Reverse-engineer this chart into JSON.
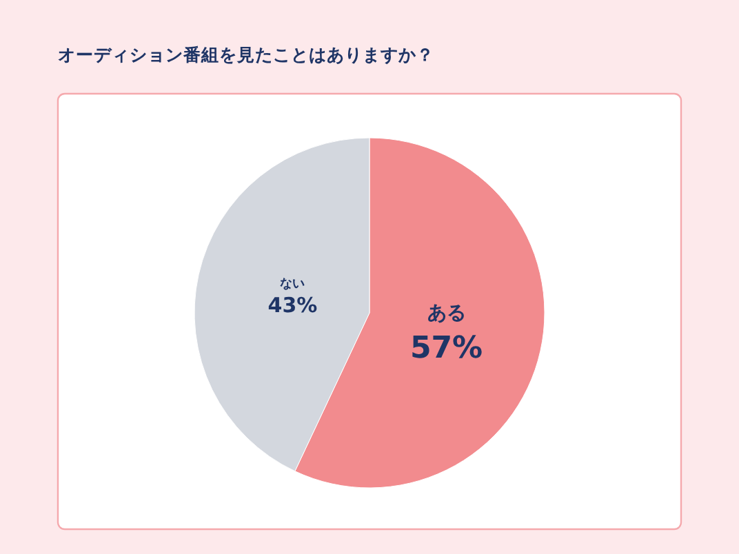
{
  "chart_data": {
    "type": "pie",
    "title": "オーディション番組を見たことはありますか？",
    "categories": [
      "ある",
      "ない"
    ],
    "values": [
      57,
      43
    ],
    "value_labels": [
      "57%",
      "43%"
    ],
    "colors": [
      "#f28b8e",
      "#d3d7de"
    ]
  }
}
